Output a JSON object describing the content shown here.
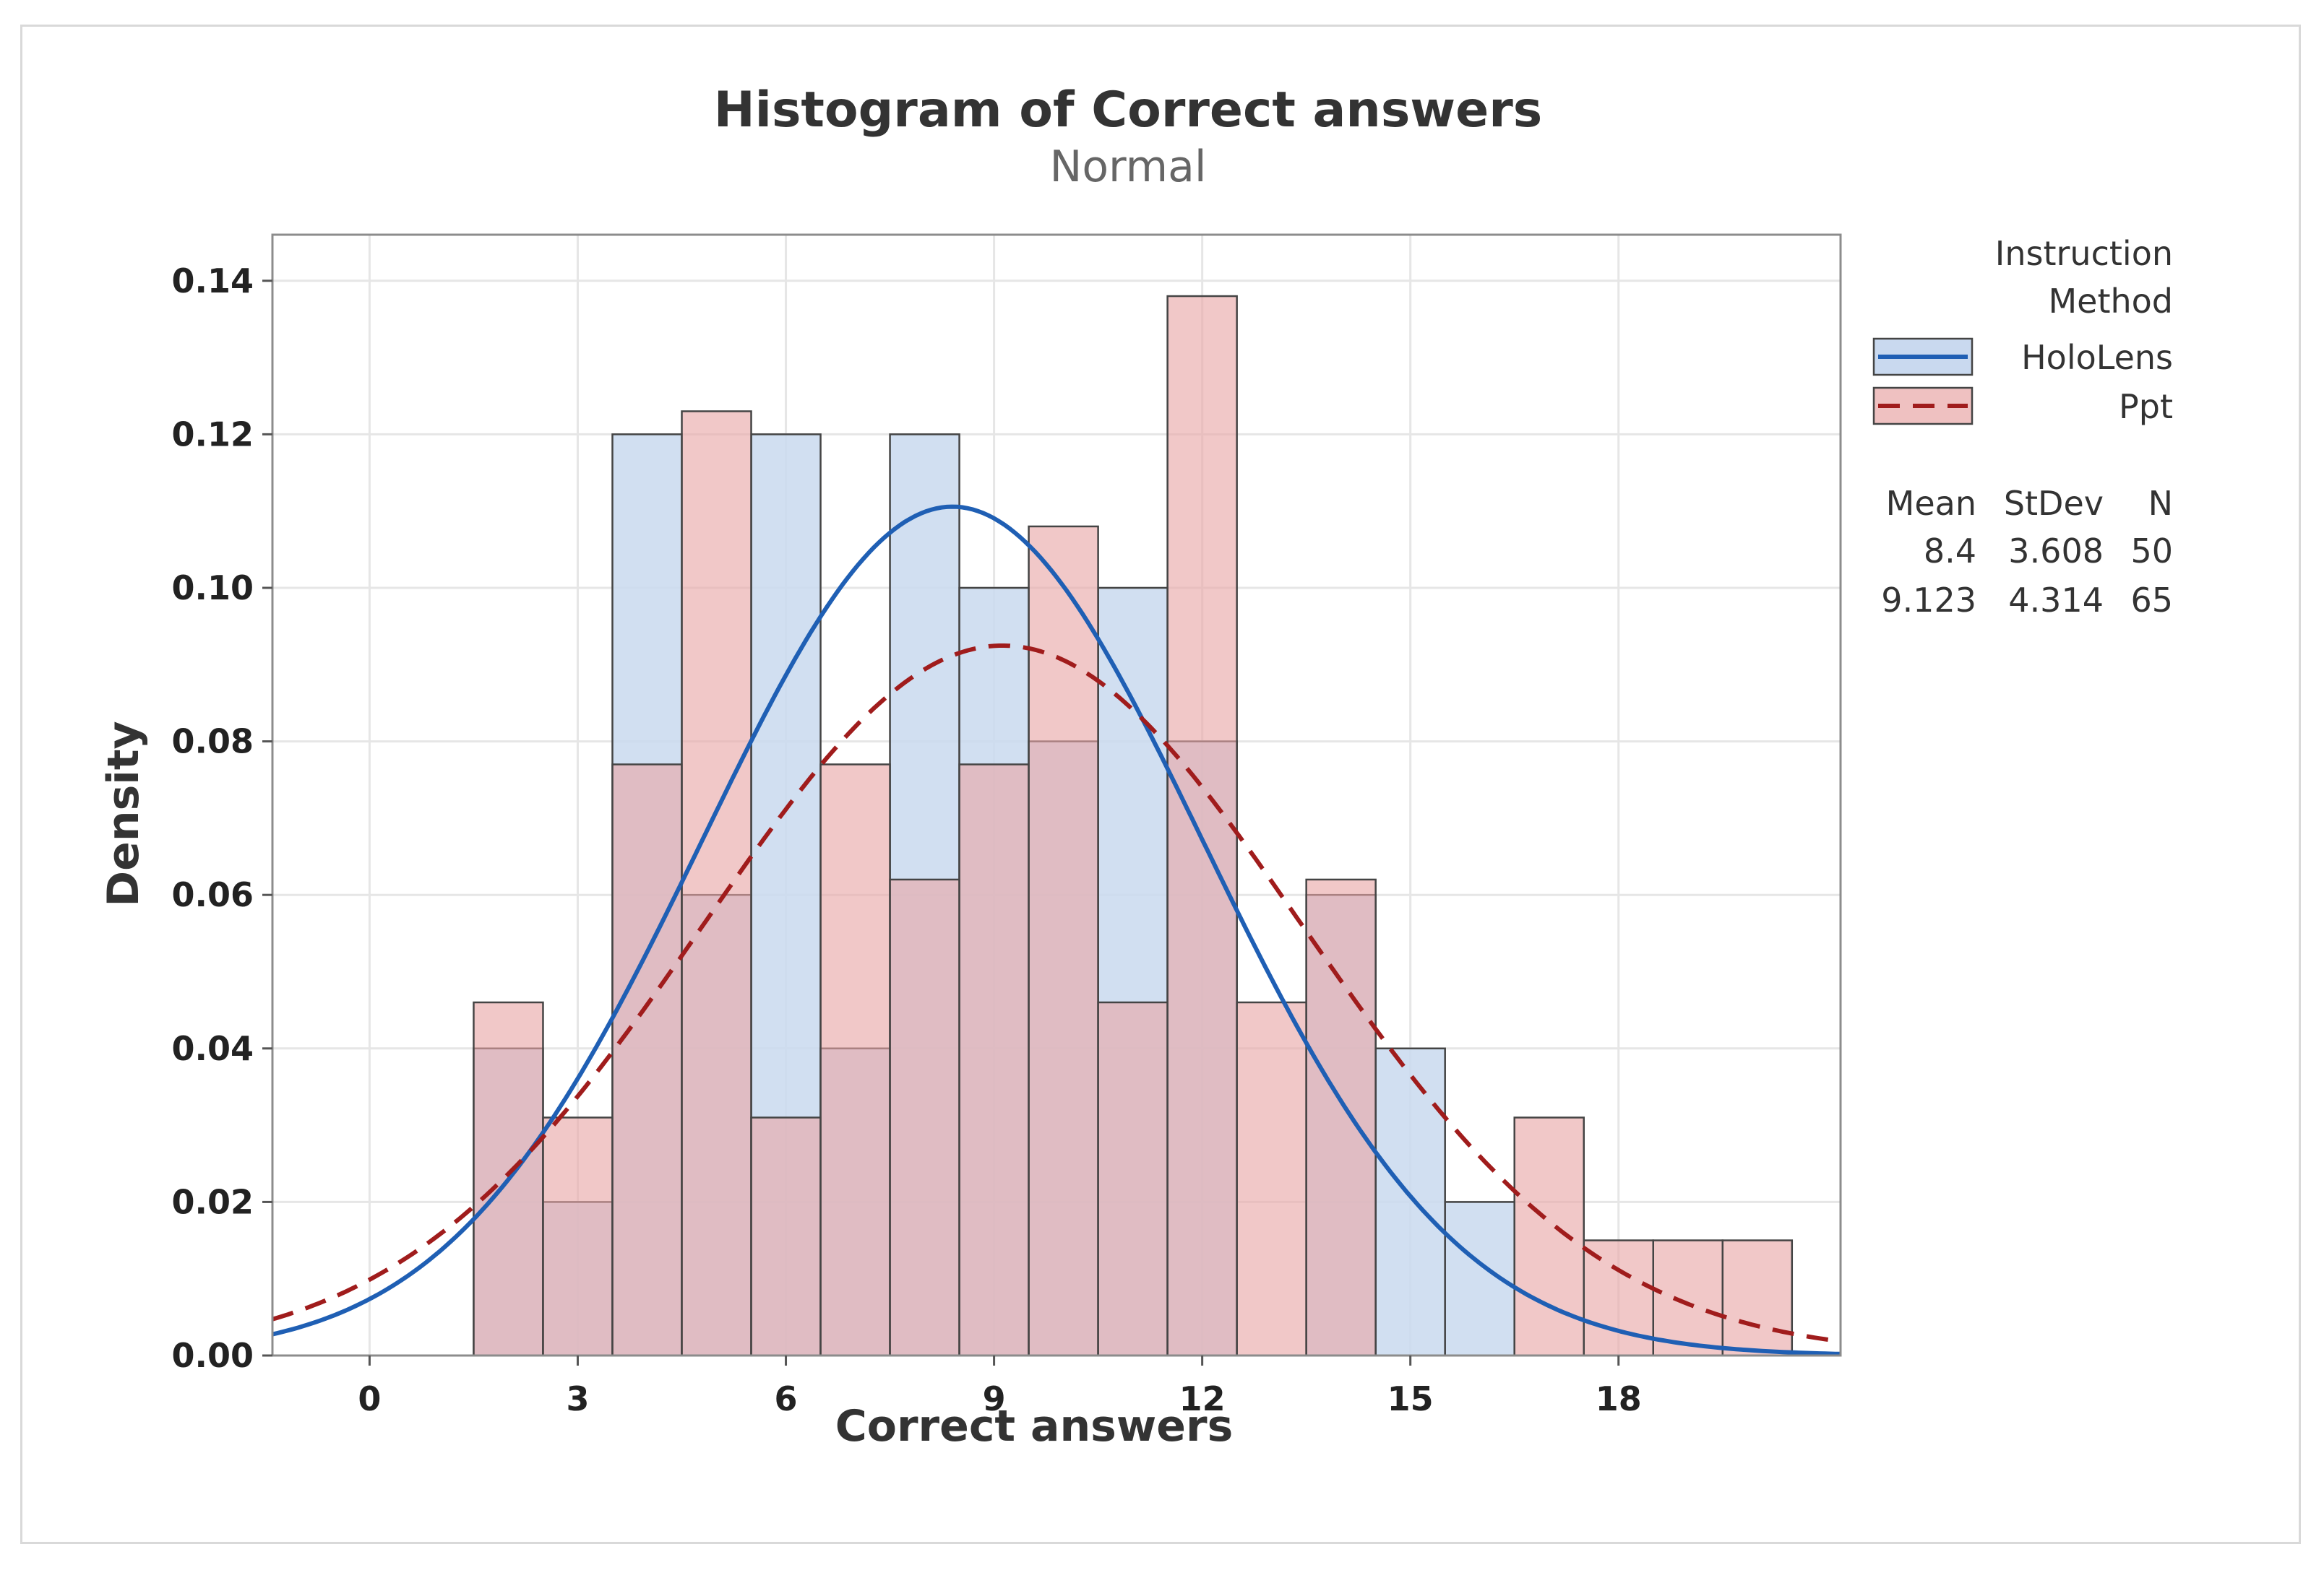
{
  "colors": {
    "holo_fill": "#c9d9ef",
    "holo_line": "#1f5fb4",
    "ppt_fill": "#e8a6a6",
    "ppt_line": "#a01c1c",
    "bar_edge": "#444444",
    "grid": "#e6e6e6",
    "plot_border": "#8c8c8c"
  },
  "chart_data": {
    "type": "bar",
    "title": "Histogram of Correct answers",
    "subtitle": "Normal",
    "xlabel": "Correct answers",
    "ylabel": "Density",
    "xlim": [
      -1.4,
      21.2
    ],
    "ylim": [
      0,
      0.146
    ],
    "xticks": [
      0,
      3,
      6,
      9,
      12,
      15,
      18
    ],
    "xtick_labels": [
      "0",
      "3",
      "6",
      "9",
      "12",
      "15",
      "18"
    ],
    "yticks": [
      0,
      0.02,
      0.04,
      0.06,
      0.08,
      0.1,
      0.12,
      0.14
    ],
    "ytick_labels": [
      "0.00",
      "0.02",
      "0.04",
      "0.06",
      "0.08",
      "0.10",
      "0.12",
      "0.14"
    ],
    "grid": true,
    "bin_width": 1,
    "bin_centers": [
      2,
      3,
      4,
      5,
      6,
      7,
      8,
      9,
      10,
      11,
      12,
      13,
      14,
      15,
      16,
      17,
      18,
      19,
      20
    ],
    "series": [
      {
        "name": "HoloLens",
        "values": [
          0.04,
          0.02,
          0.12,
          0.06,
          0.12,
          0.04,
          0.12,
          0.1,
          0.08,
          0.1,
          0.08,
          0,
          0.06,
          0.04,
          0.02,
          0,
          0,
          0,
          0
        ],
        "fit": {
          "distribution": "normal",
          "mean": 8.4,
          "stdev": 3.608
        },
        "line_style": "solid"
      },
      {
        "name": "Ppt",
        "values": [
          0.046,
          0.031,
          0.077,
          0.123,
          0.031,
          0.077,
          0.062,
          0.077,
          0.108,
          0.046,
          0.138,
          0.046,
          0.062,
          0,
          0,
          0.031,
          0.015,
          0.015,
          0.015
        ],
        "fit": {
          "distribution": "normal",
          "mean": 9.123,
          "stdev": 4.314
        },
        "line_style": "dashed"
      }
    ],
    "legend": {
      "position": "right",
      "title_line1": "Instruction",
      "title_line2": "Method",
      "entries": [
        "HoloLens",
        "Ppt"
      ]
    },
    "stats": {
      "headers": [
        "Mean",
        "StDev",
        "N"
      ],
      "rows": [
        [
          "8.4",
          "3.608",
          "50"
        ],
        [
          "9.123",
          "4.314",
          "65"
        ]
      ]
    }
  }
}
